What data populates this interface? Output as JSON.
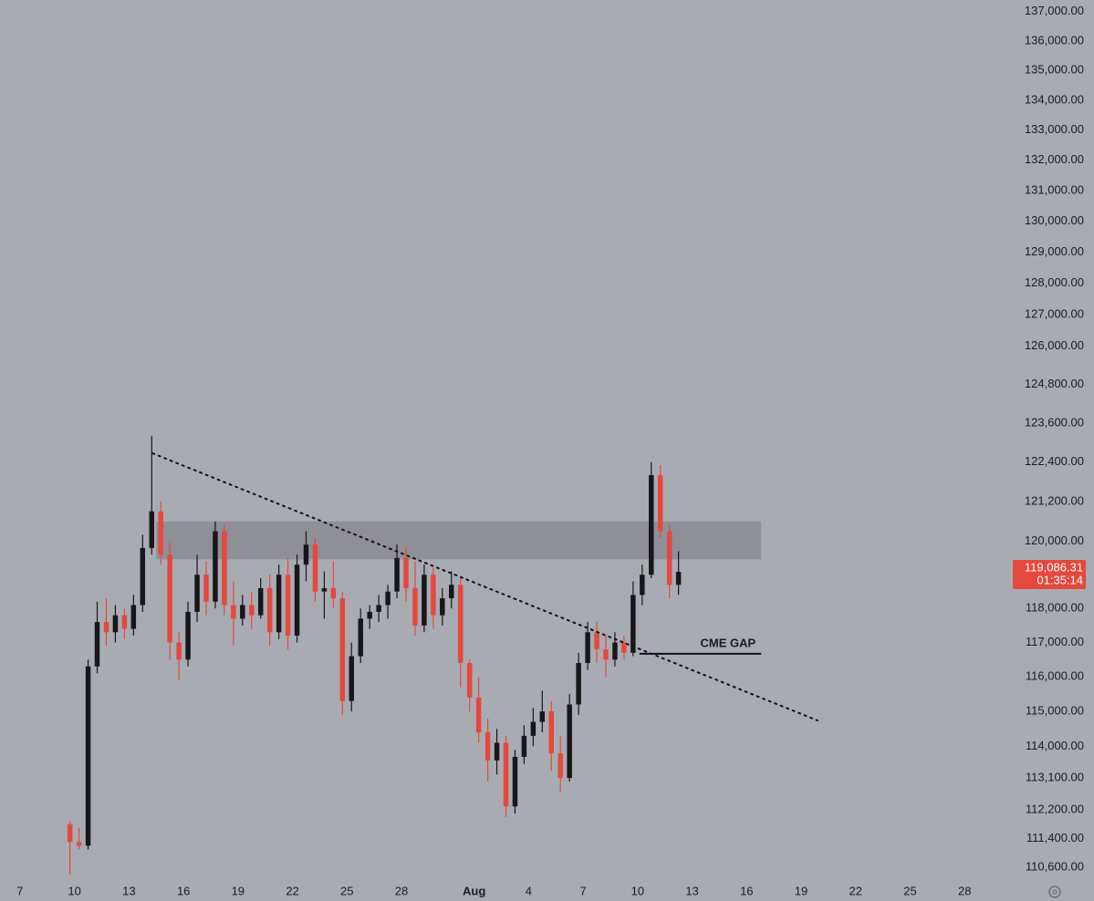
{
  "chart_data": {
    "type": "candlestick",
    "log_scale": true,
    "grid": false,
    "up_color": "#17171a",
    "down_color": "#e5483d",
    "xlim": [
      5.9,
      61.4
    ],
    "ylim": [
      110250,
      137400
    ],
    "xticks": [
      7,
      10,
      13,
      16,
      19,
      22,
      25,
      28,
      {
        "value": 32,
        "label": "Aug"
      },
      {
        "value": 35,
        "label": "4"
      },
      {
        "value": 38,
        "label": "7"
      },
      {
        "value": 41,
        "label": "10"
      },
      {
        "value": 44,
        "label": "13"
      },
      {
        "value": 47,
        "label": "16"
      },
      {
        "value": 50,
        "label": "19"
      },
      {
        "value": 53,
        "label": "22"
      },
      {
        "value": 56,
        "label": "25"
      },
      {
        "value": 59,
        "label": "28"
      }
    ],
    "yticks": [
      {
        "value": 137000,
        "label": "137,000.00"
      },
      {
        "value": 136000,
        "label": "136,000.00"
      },
      {
        "value": 135000,
        "label": "135,000.00"
      },
      {
        "value": 134000,
        "label": "134,000.00"
      },
      {
        "value": 133000,
        "label": "133,000.00"
      },
      {
        "value": 132000,
        "label": "132,000.00"
      },
      {
        "value": 131000,
        "label": "131,000.00"
      },
      {
        "value": 130000,
        "label": "130,000.00"
      },
      {
        "value": 129000,
        "label": "129,000.00"
      },
      {
        "value": 128000,
        "label": "128,000.00"
      },
      {
        "value": 127000,
        "label": "127,000.00"
      },
      {
        "value": 126000,
        "label": "126,000.00"
      },
      {
        "value": 124800,
        "label": "124,800.00"
      },
      {
        "value": 123600,
        "label": "123,600.00"
      },
      {
        "value": 122400,
        "label": "122,400.00"
      },
      {
        "value": 121200,
        "label": "121,200.00"
      },
      {
        "value": 120000,
        "label": "120,000.00"
      },
      {
        "value": 118000,
        "label": "118,000.00"
      },
      {
        "value": 117000,
        "label": "117,000.00"
      },
      {
        "value": 116000,
        "label": "116,000.00"
      },
      {
        "value": 115000,
        "label": "115,000.00"
      },
      {
        "value": 114000,
        "label": "114,000.00"
      },
      {
        "value": 113100,
        "label": "113,100.00"
      },
      {
        "value": 112200,
        "label": "112,200.00"
      },
      {
        "value": 111400,
        "label": "111,400.00"
      },
      {
        "value": 110600,
        "label": "110,600.00"
      }
    ],
    "x": [
      9.75,
      10.25,
      10.75,
      11.25,
      11.75,
      12.25,
      12.75,
      13.25,
      13.75,
      14.25,
      14.75,
      15.25,
      15.75,
      16.25,
      16.75,
      17.25,
      17.75,
      18.25,
      18.75,
      19.25,
      19.75,
      20.25,
      20.75,
      21.25,
      21.75,
      22.25,
      22.75,
      23.25,
      23.75,
      24.25,
      24.75,
      25.25,
      25.75,
      26.25,
      26.75,
      27.25,
      27.75,
      28.25,
      28.75,
      29.25,
      29.75,
      30.25,
      30.75,
      31.25,
      31.75,
      32.25,
      32.75,
      33.25,
      33.75,
      34.25,
      34.75,
      35.25,
      35.75,
      36.25,
      36.75,
      37.25,
      37.75,
      38.25,
      38.75,
      39.25,
      39.75,
      40.25,
      40.75,
      41.25,
      41.75,
      42.25,
      42.75,
      43.25
    ],
    "open": [
      111800,
      111300,
      111200,
      116300,
      117600,
      117300,
      117800,
      117400,
      118100,
      119800,
      120900,
      119600,
      117000,
      116500,
      117900,
      119000,
      118200,
      120300,
      118100,
      117700,
      118100,
      117800,
      118600,
      117300,
      119000,
      117200,
      119300,
      119900,
      118500,
      118600,
      118300,
      115300,
      116600,
      117700,
      117900,
      118100,
      118500,
      119500,
      118600,
      117500,
      119000,
      117800,
      118300,
      118700,
      116400,
      115400,
      114400,
      113600,
      114100,
      112300,
      113700,
      114300,
      114700,
      115000,
      113800,
      113100,
      115200,
      116400,
      117300,
      116800,
      116500,
      117000,
      116700,
      118400,
      119000,
      122000,
      120300,
      118700
    ],
    "high": [
      111900,
      111700,
      116500,
      118200,
      118300,
      118100,
      118000,
      118400,
      120200,
      123200,
      121200,
      120000,
      117300,
      118200,
      119600,
      119400,
      120600,
      120500,
      118800,
      118400,
      118500,
      118900,
      119000,
      119300,
      119500,
      119600,
      120300,
      120100,
      119100,
      119400,
      118500,
      117000,
      118000,
      118100,
      118400,
      118700,
      119900,
      119800,
      119400,
      119300,
      119200,
      118600,
      119100,
      118900,
      116500,
      116000,
      114800,
      114500,
      114300,
      113900,
      114600,
      115100,
      115600,
      115300,
      114300,
      115500,
      116700,
      117600,
      117600,
      117200,
      117300,
      117200,
      118800,
      119300,
      122400,
      122300,
      120500,
      119700
    ],
    "low": [
      110400,
      111100,
      111100,
      116100,
      116900,
      117000,
      117100,
      117200,
      117900,
      119600,
      119300,
      116500,
      115900,
      116300,
      117600,
      117800,
      118000,
      117800,
      116900,
      117500,
      117400,
      117700,
      116900,
      117100,
      116800,
      117000,
      118800,
      118200,
      117700,
      118000,
      114900,
      115000,
      116400,
      117400,
      117600,
      117700,
      118300,
      118200,
      117200,
      117300,
      117400,
      117500,
      118000,
      115700,
      115000,
      114100,
      113000,
      113200,
      112000,
      112100,
      113500,
      114000,
      114400,
      113300,
      112700,
      113000,
      114900,
      116200,
      116400,
      116000,
      116300,
      116500,
      116600,
      118100,
      118900,
      120100,
      118300,
      118400
    ],
    "close": [
      111300,
      111200,
      116300,
      117600,
      117300,
      117800,
      117400,
      118100,
      119800,
      120900,
      119600,
      117000,
      116500,
      117900,
      119000,
      118200,
      120300,
      118100,
      117700,
      118100,
      117800,
      118600,
      117300,
      119000,
      117200,
      119300,
      119900,
      118500,
      118600,
      118300,
      115300,
      116600,
      117700,
      117900,
      118100,
      118500,
      119500,
      118600,
      117500,
      119000,
      117800,
      118300,
      118700,
      116400,
      115400,
      114400,
      113600,
      114100,
      112300,
      113700,
      114300,
      114700,
      115000,
      113800,
      113100,
      115200,
      116400,
      117300,
      116800,
      116500,
      117000,
      116700,
      118400,
      119000,
      122000,
      120300,
      118700,
      119086.31
    ],
    "last_price": {
      "value": 119086.31,
      "label": "119,086.31"
    },
    "countdown": "01:35:14",
    "zone": {
      "x": [
        14.5,
        47.8
      ],
      "y": [
        119460,
        120600
      ]
    },
    "trendline": {
      "x": [
        14.3,
        50.9
      ],
      "y": [
        122670,
        114740
      ]
    },
    "cme_gap": {
      "label": "CME GAP",
      "x": [
        41.1,
        47.8
      ],
      "y": 116670
    }
  }
}
